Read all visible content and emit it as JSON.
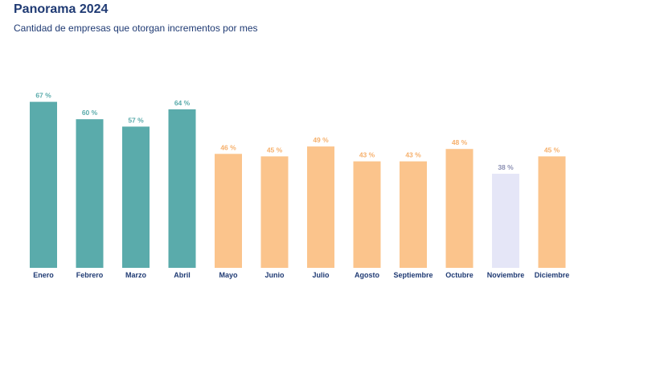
{
  "header": {
    "title": "Panorama 2024",
    "subtitle": "Cantidad de empresas que otorgan incrementos por mes"
  },
  "colors": {
    "teal": "#5aabab",
    "orange": "#fbc48c",
    "lavender": "#e5e6f7",
    "teal_text": "#5aabab",
    "orange_text": "#f6b06c",
    "lavender_text": "#8b8fb3",
    "axis_label": "#1f3a73"
  },
  "chart_data": {
    "type": "bar",
    "title": "Panorama 2024",
    "subtitle": "Cantidad de empresas que otorgan incrementos por mes",
    "xlabel": "",
    "ylabel": "",
    "ylim": [
      0,
      100
    ],
    "unit_suffix": " %",
    "categories": [
      "Enero",
      "Febrero",
      "Marzo",
      "Abril",
      "Mayo",
      "Junio",
      "Julio",
      "Agosto",
      "Septiembre",
      "Octubre",
      "Noviembre",
      "Diciembre"
    ],
    "values": [
      67,
      60,
      57,
      64,
      46,
      45,
      49,
      43,
      43,
      48,
      38,
      45
    ],
    "bar_color_groups": [
      "teal",
      "teal",
      "teal",
      "teal",
      "orange",
      "orange",
      "orange",
      "orange",
      "orange",
      "orange",
      "lavender",
      "orange"
    ],
    "grid": false,
    "legend": "none"
  }
}
